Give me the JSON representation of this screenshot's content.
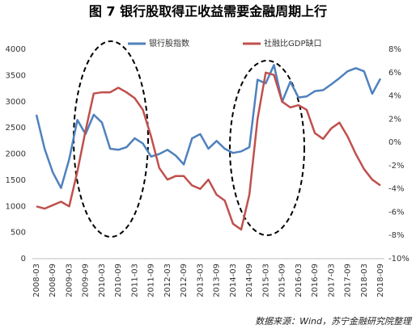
{
  "chart_data": {
    "type": "line",
    "title": "图 7  银行股取得正收益需要金融周期上行",
    "source": "数据来源：Wind，苏宁金融研究院整理",
    "categories": [
      "2008-03",
      null,
      "2008-09",
      null,
      "2009-03",
      null,
      "2009-09",
      null,
      "2010-03",
      null,
      "2010-09",
      null,
      "2011-03",
      null,
      "2011-09",
      null,
      "2012-03",
      null,
      "2012-09",
      null,
      "2013-03",
      null,
      "2013-09",
      null,
      "2014-03",
      null,
      "2014-09",
      null,
      "2015-03",
      null,
      "2015-09",
      null,
      "2016-03",
      null,
      "2016-09",
      null,
      "2017-03",
      null,
      "2017-09",
      null,
      "2018-03",
      null,
      "2018-09"
    ],
    "series": [
      {
        "name": "银行股指数",
        "color": "#4f81bd",
        "values": [
          2750,
          2100,
          1650,
          1350,
          1900,
          2650,
          2380,
          2750,
          2600,
          2100,
          2080,
          2130,
          2300,
          2200,
          1950,
          2000,
          2080,
          1970,
          1800,
          2300,
          2380,
          2100,
          2250,
          2100,
          2020,
          2050,
          2130,
          3420,
          3350,
          3700,
          3000,
          3380,
          3080,
          3100,
          3200,
          3220,
          3330,
          3450,
          3580,
          3640,
          3580,
          3150,
          3440
        ]
      },
      {
        "name": "社融比GDP缺口",
        "color": "#c0504d",
        "axis": "y2",
        "values": [
          -5.5,
          -5.7,
          -5.4,
          -5.1,
          -5.5,
          -2.5,
          1.0,
          4.2,
          4.3,
          4.3,
          4.7,
          4.3,
          3.8,
          2.8,
          0.5,
          -2.2,
          -3.2,
          -2.9,
          -2.9,
          -3.7,
          -4.0,
          -3.2,
          -4.5,
          -5.0,
          -7.0,
          -7.5,
          -4.5,
          2.0,
          6.0,
          5.8,
          3.5,
          3.0,
          3.2,
          2.8,
          0.8,
          0.3,
          1.2,
          1.7,
          0.5,
          -1.0,
          -2.3,
          -3.2,
          -3.7
        ]
      }
    ],
    "ylim": [
      0,
      4000
    ],
    "yticks": [
      0,
      500,
      1000,
      1500,
      2000,
      2500,
      3000,
      3500,
      4000
    ],
    "y2lim": [
      -10,
      8
    ],
    "y2ticks": [
      {
        "value": -10,
        "label": "-10%"
      },
      {
        "value": -8,
        "label": "-8%"
      },
      {
        "value": -6,
        "label": "-6%"
      },
      {
        "value": -4,
        "label": "-4%"
      },
      {
        "value": -2,
        "label": "-2%"
      },
      {
        "value": 0,
        "label": "0%"
      },
      {
        "value": 2,
        "label": "2%"
      },
      {
        "value": 4,
        "label": "4%"
      },
      {
        "value": 6,
        "label": "6%"
      },
      {
        "value": 8,
        "label": "8%"
      }
    ],
    "grid": false,
    "legend": "top"
  }
}
